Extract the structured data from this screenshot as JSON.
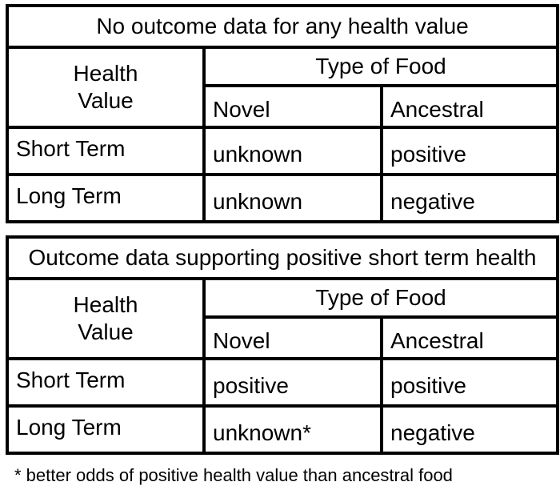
{
  "colors": {
    "background": "#ffffff",
    "text": "#000000",
    "border": "#000000"
  },
  "tables": [
    {
      "title": "No outcome data for any health value",
      "header": {
        "row_header_lines": [
          "Health",
          "Value"
        ],
        "col_group_label": "Type of Food",
        "columns": [
          "Novel",
          "Ancestral"
        ]
      },
      "rows": [
        {
          "label": "Short Term",
          "novel": "unknown",
          "ancestral": "positive"
        },
        {
          "label": "Long Term",
          "novel": "unknown",
          "ancestral": "negative"
        }
      ]
    },
    {
      "title": "Outcome data supporting positive short term health",
      "header": {
        "row_header_lines": [
          "Health",
          "Value"
        ],
        "col_group_label": "Type of Food",
        "columns": [
          "Novel",
          "Ancestral"
        ]
      },
      "rows": [
        {
          "label": "Short Term",
          "novel": "positive",
          "ancestral": "positive"
        },
        {
          "label": "Long Term",
          "novel": "unknown*",
          "ancestral": "negative"
        }
      ]
    }
  ],
  "footnote": "* better odds of positive health value than ancestral food"
}
